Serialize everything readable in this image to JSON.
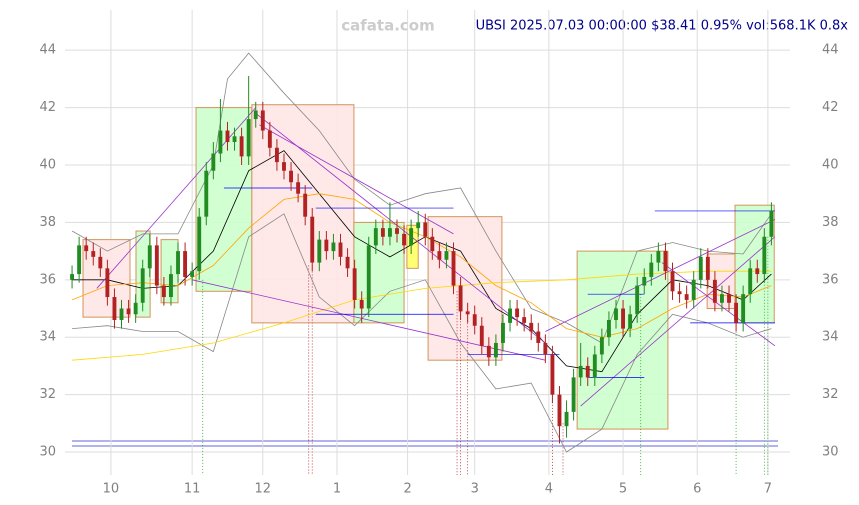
{
  "chart_data": {
    "type": "candlestick",
    "title": "UBSI 2025.07.03 00:00:00 $38.41 0.95% vol:568.1K 0.8x",
    "watermark": "cafata.com",
    "title_color": "#00008b",
    "up_color": "#228b22",
    "down_color": "#b22222",
    "xlim": [
      -2,
      201
    ],
    "ylim": [
      29.2,
      45.4
    ],
    "xticks": [
      {
        "value": 11,
        "label": "10"
      },
      {
        "value": 34,
        "label": "11"
      },
      {
        "value": 54,
        "label": "12"
      },
      {
        "value": 75,
        "label": "1"
      },
      {
        "value": 95,
        "label": "2"
      },
      {
        "value": 114,
        "label": "3"
      },
      {
        "value": 135,
        "label": "4"
      },
      {
        "value": 156,
        "label": "5"
      },
      {
        "value": 177,
        "label": "6"
      },
      {
        "value": 197,
        "label": "7"
      }
    ],
    "yticks": [
      30,
      32,
      34,
      36,
      38,
      40,
      42,
      44
    ],
    "grid": true,
    "x": [
      0,
      2,
      4,
      6,
      8,
      10,
      12,
      14,
      16,
      18,
      20,
      22,
      24,
      26,
      28,
      30,
      32,
      34,
      36,
      38,
      40,
      42,
      44,
      46,
      48,
      50,
      52,
      54,
      56,
      58,
      60,
      62,
      64,
      66,
      68,
      70,
      72,
      74,
      76,
      78,
      80,
      82,
      84,
      86,
      88,
      90,
      92,
      94,
      96,
      98,
      100,
      102,
      104,
      106,
      108,
      110,
      112,
      114,
      116,
      118,
      120,
      122,
      124,
      126,
      128,
      130,
      132,
      134,
      136,
      138,
      140,
      142,
      144,
      146,
      148,
      150,
      152,
      154,
      156,
      158,
      160,
      162,
      164,
      166,
      168,
      170,
      172,
      174,
      176,
      178,
      180,
      182,
      184,
      186,
      188,
      190,
      192,
      194,
      196,
      198
    ],
    "ohlc": [
      [
        36.0,
        36.5,
        35.7,
        36.2
      ],
      [
        36.2,
        37.5,
        35.9,
        37.2
      ],
      [
        37.2,
        37.5,
        36.7,
        37.0
      ],
      [
        37.0,
        37.3,
        36.5,
        36.8
      ],
      [
        36.8,
        37.1,
        36.1,
        36.4
      ],
      [
        36.4,
        36.7,
        35.1,
        35.4
      ],
      [
        35.4,
        35.7,
        34.3,
        34.6
      ],
      [
        34.6,
        35.3,
        34.3,
        35.0
      ],
      [
        35.0,
        35.3,
        34.5,
        34.8
      ],
      [
        34.8,
        35.5,
        34.5,
        35.2
      ],
      [
        35.2,
        36.7,
        34.9,
        36.4
      ],
      [
        36.4,
        37.6,
        36.1,
        37.2
      ],
      [
        37.2,
        37.5,
        35.5,
        35.8
      ],
      [
        35.8,
        36.1,
        35.1,
        35.4
      ],
      [
        35.4,
        36.5,
        35.1,
        36.2
      ],
      [
        36.2,
        37.3,
        35.9,
        37.0
      ],
      [
        37.0,
        37.3,
        35.8,
        36.1
      ],
      [
        36.1,
        36.6,
        35.8,
        36.3
      ],
      [
        36.3,
        38.5,
        36.0,
        38.2
      ],
      [
        38.2,
        40.1,
        37.9,
        39.8
      ],
      [
        39.8,
        40.8,
        39.5,
        40.4
      ],
      [
        40.4,
        42.3,
        40.1,
        41.2
      ],
      [
        41.2,
        41.5,
        40.5,
        40.8
      ],
      [
        40.8,
        41.3,
        40.5,
        41.0
      ],
      [
        41.0,
        41.3,
        40.0,
        40.3
      ],
      [
        40.3,
        43.1,
        40.0,
        41.6
      ],
      [
        41.6,
        42.2,
        41.3,
        41.9
      ],
      [
        41.9,
        42.2,
        40.9,
        41.2
      ],
      [
        41.2,
        41.5,
        40.3,
        40.6
      ],
      [
        40.6,
        40.9,
        39.8,
        40.1
      ],
      [
        40.1,
        40.4,
        39.5,
        39.8
      ],
      [
        39.8,
        40.1,
        39.1,
        39.4
      ],
      [
        39.4,
        39.7,
        38.7,
        39.0
      ],
      [
        39.0,
        39.3,
        37.9,
        38.2
      ],
      [
        38.2,
        38.5,
        36.3,
        36.6
      ],
      [
        36.6,
        37.7,
        36.3,
        37.4
      ],
      [
        37.4,
        37.7,
        36.7,
        37.0
      ],
      [
        37.0,
        37.6,
        36.7,
        37.3
      ],
      [
        37.3,
        37.6,
        36.5,
        36.8
      ],
      [
        36.8,
        37.1,
        36.1,
        36.4
      ],
      [
        36.4,
        36.7,
        35.0,
        35.3
      ],
      [
        35.3,
        35.6,
        34.5,
        35.0
      ],
      [
        35.0,
        37.5,
        34.7,
        37.2
      ],
      [
        37.2,
        38.1,
        36.9,
        37.8
      ],
      [
        37.8,
        38.1,
        37.2,
        37.5
      ],
      [
        37.5,
        38.7,
        37.2,
        37.8
      ],
      [
        37.8,
        38.1,
        37.3,
        37.6
      ],
      [
        37.6,
        37.9,
        36.9,
        37.2
      ],
      [
        37.2,
        38.1,
        36.9,
        37.8
      ],
      [
        37.8,
        38.4,
        37.5,
        38.0
      ],
      [
        38.0,
        38.3,
        37.2,
        37.5
      ],
      [
        37.5,
        37.8,
        36.7,
        37.0
      ],
      [
        37.0,
        37.3,
        36.4,
        36.7
      ],
      [
        36.7,
        37.3,
        36.4,
        37.0
      ],
      [
        37.0,
        37.3,
        35.5,
        35.8
      ],
      [
        35.8,
        36.1,
        34.6,
        34.9
      ],
      [
        34.9,
        35.2,
        34.5,
        34.8
      ],
      [
        34.8,
        35.1,
        34.1,
        34.4
      ],
      [
        34.4,
        34.7,
        33.4,
        33.7
      ],
      [
        33.7,
        34.0,
        33.0,
        33.3
      ],
      [
        33.3,
        34.1,
        33.0,
        33.8
      ],
      [
        33.8,
        34.8,
        33.5,
        34.5
      ],
      [
        34.5,
        35.3,
        34.2,
        35.0
      ],
      [
        35.0,
        35.3,
        34.4,
        34.7
      ],
      [
        34.7,
        35.0,
        34.2,
        34.5
      ],
      [
        34.5,
        34.8,
        33.9,
        34.2
      ],
      [
        34.2,
        34.5,
        33.5,
        33.8
      ],
      [
        33.8,
        34.1,
        33.1,
        33.4
      ],
      [
        33.4,
        33.7,
        31.7,
        32.0
      ],
      [
        32.0,
        32.3,
        30.3,
        30.9
      ],
      [
        30.9,
        31.8,
        30.5,
        31.4
      ],
      [
        31.4,
        32.9,
        31.1,
        32.6
      ],
      [
        32.6,
        33.8,
        32.3,
        33.0
      ],
      [
        33.0,
        33.3,
        32.3,
        32.6
      ],
      [
        32.6,
        33.7,
        32.3,
        33.4
      ],
      [
        33.4,
        34.3,
        33.1,
        34.0
      ],
      [
        34.0,
        34.9,
        33.7,
        34.6
      ],
      [
        34.6,
        35.3,
        34.3,
        35.0
      ],
      [
        35.0,
        35.3,
        34.0,
        34.3
      ],
      [
        34.3,
        35.1,
        34.0,
        34.8
      ],
      [
        34.8,
        36.1,
        34.5,
        35.8
      ],
      [
        35.8,
        36.4,
        35.5,
        36.1
      ],
      [
        36.1,
        36.9,
        35.8,
        36.6
      ],
      [
        36.6,
        37.3,
        36.3,
        37.0
      ],
      [
        37.0,
        37.3,
        36.0,
        36.3
      ],
      [
        36.3,
        36.6,
        35.3,
        35.6
      ],
      [
        35.6,
        35.9,
        35.2,
        35.5
      ],
      [
        35.5,
        35.8,
        35.0,
        35.3
      ],
      [
        35.3,
        36.3,
        35.0,
        36.0
      ],
      [
        36.0,
        37.1,
        35.7,
        36.8
      ],
      [
        36.8,
        37.1,
        35.7,
        36.0
      ],
      [
        36.0,
        36.3,
        34.9,
        35.2
      ],
      [
        35.2,
        35.8,
        34.9,
        35.5
      ],
      [
        35.5,
        35.8,
        34.9,
        35.2
      ],
      [
        35.2,
        35.5,
        34.2,
        34.5
      ],
      [
        34.5,
        35.8,
        34.2,
        35.5
      ],
      [
        35.5,
        36.7,
        35.2,
        36.4
      ],
      [
        36.4,
        36.7,
        35.9,
        36.2
      ],
      [
        36.2,
        37.8,
        35.9,
        37.5
      ],
      [
        37.5,
        38.7,
        37.2,
        38.4
      ]
    ],
    "boxes": [
      {
        "x": [
          3.1,
          16.4
        ],
        "y": [
          37.4,
          34.7
        ],
        "fill": "#ffe6e6"
      },
      {
        "x": [
          18.1,
          22.1
        ],
        "y": [
          37.7,
          34.7
        ],
        "fill": "#ccffcc"
      },
      {
        "x": [
          25.2,
          30
        ],
        "y": [
          37.4,
          35.2
        ],
        "fill": "#ccffcc"
      },
      {
        "x": [
          35.1,
          50.9
        ],
        "y": [
          42.0,
          35.6
        ],
        "fill": "#ccffcc"
      },
      {
        "x": [
          50.9,
          79.8
        ],
        "y": [
          42.1,
          34.5
        ],
        "fill": "#ffe6e6"
      },
      {
        "x": [
          79.8,
          94
        ],
        "y": [
          38.0,
          34.5
        ],
        "fill": "#ccffcc"
      },
      {
        "x": [
          94.8,
          98
        ],
        "y": [
          37.9,
          36.4
        ],
        "fill": "#ffff66"
      },
      {
        "x": [
          100.8,
          121.7
        ],
        "y": [
          38.2,
          33.2
        ],
        "fill": "#ffe6e6"
      },
      {
        "x": [
          143,
          168.7
        ],
        "y": [
          37.0,
          30.8
        ],
        "fill": "#ccffcc"
      },
      {
        "x": [
          179.8,
          187.7
        ],
        "y": [
          36.9,
          35.0
        ],
        "fill": "#ffe6e6"
      },
      {
        "x": [
          187.7,
          198.8
        ],
        "y": [
          38.6,
          34.5
        ],
        "fill": "#ccffcc"
      }
    ],
    "lines": [
      {
        "color": "#888888",
        "x": [
          0,
          10,
          20,
          30,
          40,
          44,
          50,
          60,
          70,
          80,
          90,
          100,
          110,
          120,
          130,
          140,
          150,
          160,
          170,
          180,
          190,
          198
        ],
        "values": [
          37.7,
          37.0,
          37.6,
          37.6,
          40.0,
          43.0,
          43.9,
          42.5,
          41.2,
          39.5,
          38.6,
          39.0,
          39.2,
          37.0,
          35.0,
          34.5,
          33.8,
          37.0,
          37.3,
          37.0,
          36.9,
          38.3
        ]
      },
      {
        "color": "#888888",
        "x": [
          0,
          10,
          20,
          30,
          40,
          50,
          60,
          70,
          80,
          90,
          100,
          110,
          120,
          130,
          140,
          150,
          160,
          170,
          180,
          190,
          198
        ],
        "values": [
          34.3,
          34.4,
          34.2,
          34.2,
          33.5,
          37.5,
          38.3,
          35.4,
          34.4,
          35.6,
          36.0,
          33.8,
          32.2,
          32.4,
          30.0,
          30.8,
          33.4,
          34.8,
          34.5,
          34.0,
          34.3
        ]
      },
      {
        "color": "#000000",
        "x": [
          0,
          10,
          20,
          30,
          40,
          50,
          60,
          70,
          80,
          90,
          100,
          110,
          120,
          130,
          140,
          150,
          160,
          170,
          180,
          190,
          198
        ],
        "values": [
          36.0,
          36.0,
          35.7,
          35.8,
          37.0,
          39.8,
          40.5,
          39.0,
          37.5,
          36.8,
          37.5,
          37.0,
          35.0,
          34.3,
          33.0,
          32.8,
          34.8,
          36.0,
          35.8,
          35.3,
          36.2
        ]
      },
      {
        "color": "#ffa500",
        "x": [
          0,
          10,
          20,
          30,
          40,
          50,
          60,
          70,
          80,
          90,
          100,
          110,
          120,
          130,
          140,
          150,
          160,
          170,
          180,
          190,
          198
        ],
        "values": [
          35.3,
          35.8,
          35.9,
          35.8,
          36.5,
          37.8,
          38.8,
          39.0,
          38.8,
          38.0,
          37.5,
          36.8,
          35.8,
          35.2,
          34.3,
          34.0,
          34.3,
          35.0,
          35.5,
          35.4,
          35.8
        ]
      },
      {
        "color": "#ffd700",
        "x": [
          0,
          20,
          40,
          60,
          80,
          100,
          120,
          140,
          160,
          180,
          198
        ],
        "values": [
          33.2,
          33.4,
          33.8,
          34.5,
          35.3,
          35.7,
          35.9,
          36.0,
          36.2,
          36.3,
          36.3
        ]
      }
    ],
    "trend_lines": [
      [
        7,
        35.7,
        52,
        42.0
      ],
      [
        52,
        41.8,
        134,
        33.8
      ],
      [
        34,
        36.0,
        134,
        33.2
      ],
      [
        53,
        41.4,
        108,
        37.6
      ],
      [
        134,
        34.2,
        199,
        38.1
      ],
      [
        144,
        31.6,
        199,
        37.5
      ],
      [
        167,
        36.6,
        199,
        33.7
      ]
    ],
    "trend_color": "#9932cc",
    "levels": [
      [
        43,
        68,
        39.2
      ],
      [
        69,
        108,
        38.5
      ],
      [
        69,
        108,
        34.8
      ],
      [
        112,
        138,
        33.4
      ],
      [
        146,
        162,
        35.5
      ],
      [
        146,
        162,
        32.6
      ],
      [
        165,
        199,
        38.4
      ],
      [
        175,
        199,
        34.5
      ]
    ],
    "level_color": "#0000ff",
    "signals": [
      [
        37,
        36.0,
        "#2ca02c"
      ],
      [
        67,
        36.5,
        "#b22222"
      ],
      [
        68,
        36.5,
        "#b22222"
      ],
      [
        109,
        35.6,
        "#b22222"
      ],
      [
        110,
        35.6,
        "#b22222"
      ],
      [
        112,
        34.8,
        "#b22222"
      ],
      [
        136,
        33.0,
        "#b22222"
      ],
      [
        139,
        31.0,
        "#b22222"
      ],
      [
        161,
        35.5,
        "#2ca02c"
      ],
      [
        188,
        34.5,
        "#2ca02c"
      ],
      [
        196,
        37.5,
        "#2ca02c"
      ],
      [
        197,
        37.5,
        "#2ca02c"
      ]
    ]
  }
}
